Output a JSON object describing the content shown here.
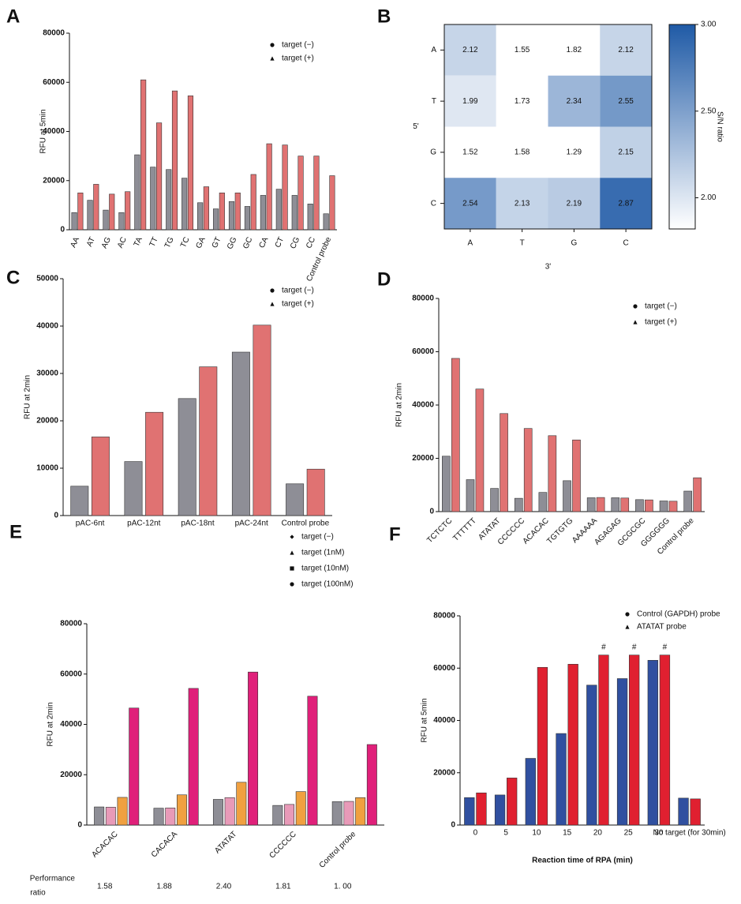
{
  "chart_data": [
    {
      "type": "bar",
      "panel": "A",
      "ylabel": "RFU at 5min",
      "categories": [
        "AA",
        "AT",
        "AG",
        "AC",
        "TA",
        "TT",
        "TG",
        "TC",
        "GA",
        "GT",
        "GG",
        "GC",
        "CA",
        "CT",
        "CG",
        "CC",
        "Control probe"
      ],
      "series": [
        {
          "name": "target (−)",
          "color": "#8e8e96",
          "marker": "circle",
          "values": [
            7000,
            12000,
            8000,
            7000,
            30500,
            25500,
            24500,
            21000,
            11000,
            8500,
            11500,
            9500,
            14000,
            16500,
            14000,
            10500,
            6500
          ]
        },
        {
          "name": "target (+)",
          "color": "#e07272",
          "marker": "triangle",
          "values": [
            15000,
            18500,
            14500,
            15500,
            61000,
            43500,
            56500,
            54500,
            17500,
            15000,
            15000,
            22500,
            35000,
            34500,
            30000,
            30000,
            22000
          ]
        }
      ],
      "ylim": [
        0,
        80000
      ],
      "yticks": [
        0,
        20000,
        40000,
        60000,
        80000
      ]
    },
    {
      "type": "heatmap",
      "panel": "B",
      "x": [
        "A",
        "T",
        "G",
        "C"
      ],
      "y": [
        "A",
        "T",
        "G",
        "C"
      ],
      "xlabel": "3'",
      "ylabel": "5'",
      "z": [
        [
          2.12,
          1.55,
          1.82,
          2.12
        ],
        [
          1.99,
          1.73,
          2.34,
          2.55
        ],
        [
          1.52,
          1.58,
          1.29,
          2.15
        ],
        [
          2.54,
          2.13,
          2.19,
          2.87
        ]
      ],
      "colorbar_label": "S/N ratio",
      "clim": [
        1.82,
        3.0
      ],
      "colors": [
        "#ffffff",
        "#1f5aa6"
      ],
      "cticks": [
        {
          "value": 2,
          "label": "2.00"
        },
        {
          "value": 2.5,
          "label": "2.50"
        },
        {
          "value": 3,
          "label": "3.00"
        }
      ]
    },
    {
      "type": "bar",
      "panel": "C",
      "ylabel": "RFU at 2min",
      "categories": [
        "pAC-6nt",
        "pAC-12nt",
        "pAC-18nt",
        "pAC-24nt",
        "Control probe"
      ],
      "series": [
        {
          "name": "target (−)",
          "color": "#8e8e96",
          "marker": "circle",
          "values": [
            6200,
            11400,
            24700,
            34500,
            6700
          ]
        },
        {
          "name": "target (+)",
          "color": "#e07272",
          "marker": "triangle",
          "values": [
            16600,
            21800,
            31400,
            40200,
            9800
          ]
        }
      ],
      "ylim": [
        0,
        50000
      ],
      "yticks": [
        0,
        10000,
        20000,
        30000,
        40000,
        50000
      ]
    },
    {
      "type": "bar",
      "panel": "D",
      "ylabel": "RFU at 2min",
      "categories": [
        "TCTCTC",
        "TTTTTT",
        "ATATAT",
        "CCCCCC",
        "ACACAC",
        "TGTGTG",
        "AAAAAA",
        "AGAGAG",
        "GCGCGC",
        "GGGGGG",
        "Control probe"
      ],
      "series": [
        {
          "name": "target (−)",
          "color": "#8e8e96",
          "marker": "circle",
          "values": [
            20800,
            12000,
            8700,
            5000,
            7200,
            11600,
            5200,
            5200,
            4500,
            4000,
            7700
          ]
        },
        {
          "name": "target (+)",
          "color": "#e07272",
          "marker": "triangle",
          "values": [
            57500,
            46000,
            36800,
            31200,
            28500,
            26900,
            5300,
            5100,
            4400,
            3900,
            12700
          ]
        }
      ],
      "ylim": [
        0,
        80000
      ],
      "yticks": [
        0,
        20000,
        40000,
        60000,
        80000
      ]
    },
    {
      "type": "bar",
      "panel": "E",
      "ylabel": "RFU at 2min",
      "categories": [
        "ACACAC",
        "CACACA",
        "ATATAT",
        "CCCCCC",
        "Control probe"
      ],
      "series": [
        {
          "name": "target (−)",
          "color": "#8e8e96",
          "marker": "diamond",
          "values": [
            7200,
            6700,
            10200,
            7800,
            9300
          ]
        },
        {
          "name": "target (1nM)",
          "color": "#e89ab8",
          "marker": "triangle",
          "values": [
            7100,
            6800,
            10900,
            8200,
            9400
          ]
        },
        {
          "name": "target (10nM)",
          "color": "#f0a040",
          "marker": "square",
          "values": [
            11000,
            12000,
            17000,
            13300,
            10900
          ]
        },
        {
          "name": "target (100nM)",
          "color": "#e0207a",
          "marker": "circle",
          "values": [
            46500,
            54300,
            60800,
            51200,
            32000
          ]
        }
      ],
      "ylim": [
        0,
        80000
      ],
      "yticks": [
        0,
        20000,
        40000,
        60000,
        80000
      ],
      "performance_ratio": {
        "label": [
          "Performance",
          "ratio"
        ],
        "values": [
          1.58,
          1.88,
          2.4,
          1.81,
          1
        ],
        "value_labels": [
          "1.58",
          "1.88",
          "2.40",
          "1.81",
          "1.  00"
        ]
      }
    },
    {
      "type": "bar",
      "panel": "F",
      "ylabel": "RFU at 5min",
      "xlabel": "Reaction time of RPA (min)",
      "categories": [
        "0",
        "5",
        "10",
        "15",
        "20",
        "25",
        "30",
        "No target (for 30min)"
      ],
      "series": [
        {
          "name": "Control (GAPDH) probe",
          "color": "#3050a0",
          "marker": "circle",
          "values": [
            10500,
            11500,
            25500,
            35000,
            53500,
            56000,
            63000,
            10300
          ]
        },
        {
          "name": "ATATAT probe",
          "color": "#e02030",
          "marker": "triangle",
          "values": [
            12300,
            18000,
            60300,
            61500,
            65000,
            65000,
            65000,
            10000
          ]
        }
      ],
      "ylim": [
        0,
        80000
      ],
      "yticks": [
        0,
        20000,
        40000,
        60000,
        80000
      ],
      "legend_text_colored": true,
      "annotations": [
        {
          "text": "#",
          "x": "20",
          "series": 1
        },
        {
          "text": "#",
          "x": "25",
          "series": 1
        },
        {
          "text": "#",
          "x": "30",
          "series": 1
        }
      ]
    }
  ]
}
